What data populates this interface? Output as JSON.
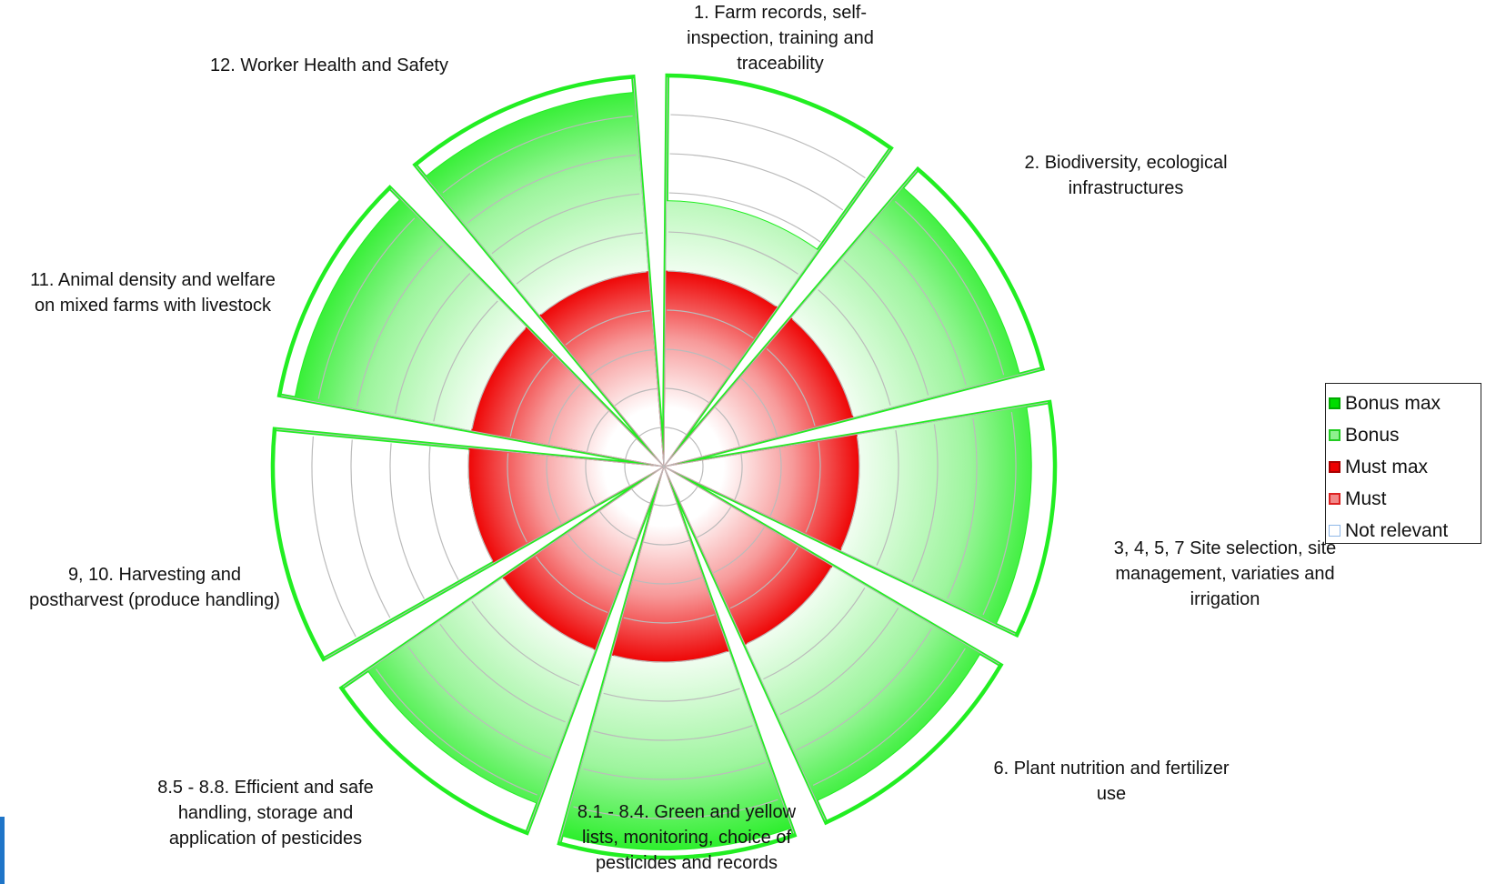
{
  "chart_data": {
    "type": "polar_area",
    "scale_max": 5,
    "ring_count": 10,
    "categories": [
      {
        "label": [
          "1. Farm records, self-",
          "inspection, training and",
          "traceability"
        ],
        "must": 2.5,
        "bonus": 3.4,
        "bonus_max": 5
      },
      {
        "label": [
          "2. Biodiversity, ecological",
          "infrastructures"
        ],
        "must": 2.5,
        "bonus": 4.7,
        "bonus_max": 5
      },
      {
        "label": [
          "3, 4, 5, 7 Site selection, site",
          "management, variaties and",
          "irrigation"
        ],
        "must": 2.5,
        "bonus": 4.7,
        "bonus_max": 5
      },
      {
        "label": [
          "6. Plant nutrition and fertilizer",
          "use"
        ],
        "must": 2.5,
        "bonus": 4.7,
        "bonus_max": 5
      },
      {
        "label": [
          "8.1 - 8.4. Green and yellow",
          "lists, monitoring, choice of",
          "pesticides and records"
        ],
        "must": 2.5,
        "bonus": 4.9,
        "bonus_max": 5
      },
      {
        "label": [
          "8.5 - 8.8. Efficient and safe",
          "handling, storage and",
          "application of pesticides"
        ],
        "must": 2.5,
        "bonus": 4.6,
        "bonus_max": 5
      },
      {
        "label": [
          "9, 10. Harvesting and",
          "postharvest (produce handling)"
        ],
        "must": 2.5,
        "bonus": 2.5,
        "bonus_max": 5
      },
      {
        "label": [
          "11. Animal density and welfare",
          "on mixed farms with livestock"
        ],
        "must": 2.5,
        "bonus": 4.8,
        "bonus_max": 5
      },
      {
        "label": [
          "12.  Worker Health and Safety"
        ],
        "must": 2.5,
        "bonus": 4.8,
        "bonus_max": 5
      }
    ],
    "legend": [
      {
        "label": "Bonus max",
        "color": "#00dd00"
      },
      {
        "label": "Bonus",
        "color": "#55dd55"
      },
      {
        "label": "Must max",
        "color": "#ee0000"
      },
      {
        "label": "Must",
        "color": "#ee5555"
      },
      {
        "label": "Not relevant",
        "color": "#aaccee"
      }
    ],
    "colors": {
      "bonus_outline": "#22ee22",
      "bonus_fill": "#22ee22",
      "must_fill": "#ee1111",
      "grid": "#bbbbbb"
    }
  }
}
